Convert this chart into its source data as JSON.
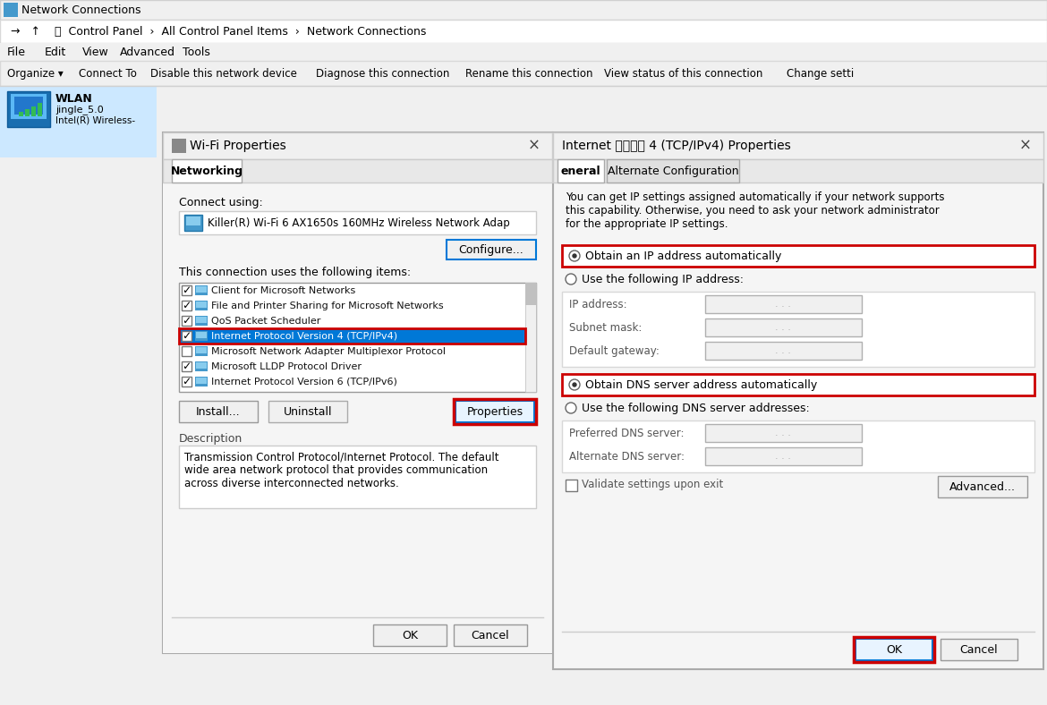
{
  "bg_color": "#f0f0f0",
  "white": "#ffffff",
  "red_border": "#cc0000",
  "blue_sel": "#0078d7",
  "blue_sel_light": "#cce8ff",
  "taskbar_title": "Network Connections",
  "nav_path": " →   ↑    📁  Control Panel  ›  All Control Panel Items  ›  Network Connections",
  "menu_items": [
    "File",
    "Edit",
    "View",
    "Advanced",
    "Tools"
  ],
  "toolbar_items": [
    "Organize ▾",
    "Connect To",
    "Disable this network device",
    "Diagnose this connection",
    "Rename this connection",
    "View status of this connection",
    "Change setti"
  ],
  "wlan_name": "WLAN",
  "wlan_ssid": "jingle_5.0",
  "wlan_adapter": "Intel(R) Wireless-",
  "wifi_title": "Wi-Fi Properties",
  "wifi_tab": "Networking",
  "connect_using_label": "Connect using:",
  "adapter_name": "Killer(R) Wi-Fi 6 AX1650s 160MHz Wireless Network Adap",
  "configure_btn": "Configure...",
  "items_label": "This connection uses the following items:",
  "protocol_items": [
    {
      "checked": true,
      "name": "Client for Microsoft Networks",
      "highlight": false
    },
    {
      "checked": true,
      "name": "File and Printer Sharing for Microsoft Networks",
      "highlight": false
    },
    {
      "checked": true,
      "name": "QoS Packet Scheduler",
      "highlight": false
    },
    {
      "checked": true,
      "name": "Internet Protocol Version 4 (TCP/IPv4)",
      "highlight": true
    },
    {
      "checked": false,
      "name": "Microsoft Network Adapter Multiplexor Protocol",
      "highlight": false
    },
    {
      "checked": true,
      "name": "Microsoft LLDP Protocol Driver",
      "highlight": false
    },
    {
      "checked": true,
      "name": "Internet Protocol Version 6 (TCP/IPv6)",
      "highlight": false
    }
  ],
  "install_btn": "Install...",
  "uninstall_btn": "Uninstall",
  "properties_btn": "Properties",
  "desc_title": "Description",
  "desc_text": "Transmission Control Protocol/Internet Protocol. The default\nwide area network protocol that provides communication\nacross diverse interconnected networks.",
  "wifi_ok_btn": "OK",
  "wifi_cancel_btn": "Cancel",
  "ipv4_title": "Internet 协议版本 4 (TCP/IPv4) Properties",
  "ipv4_tab1": "eneral",
  "ipv4_tab2": "Alternate Configuration",
  "ipv4_desc": "You can get IP settings assigned automatically if your network supports\nthis capability. Otherwise, you need to ask your network administrator\nfor the appropriate IP settings.",
  "radio_auto_ip": "Obtain an IP address automatically",
  "radio_manual_ip": "Use the following IP address:",
  "ip_address_label": "IP address:",
  "subnet_mask_label": "Subnet mask:",
  "default_gw_label": "Default gateway:",
  "radio_auto_dns": "Obtain DNS server address automatically",
  "radio_manual_dns": "Use the following DNS server addresses:",
  "pref_dns_label": "Preferred DNS server:",
  "alt_dns_label": "Alternate DNS server:",
  "validate_label": "Validate settings upon exit",
  "advanced_btn": "Advanced...",
  "ipv4_ok_btn": "OK",
  "ipv4_cancel_btn": "Cancel"
}
